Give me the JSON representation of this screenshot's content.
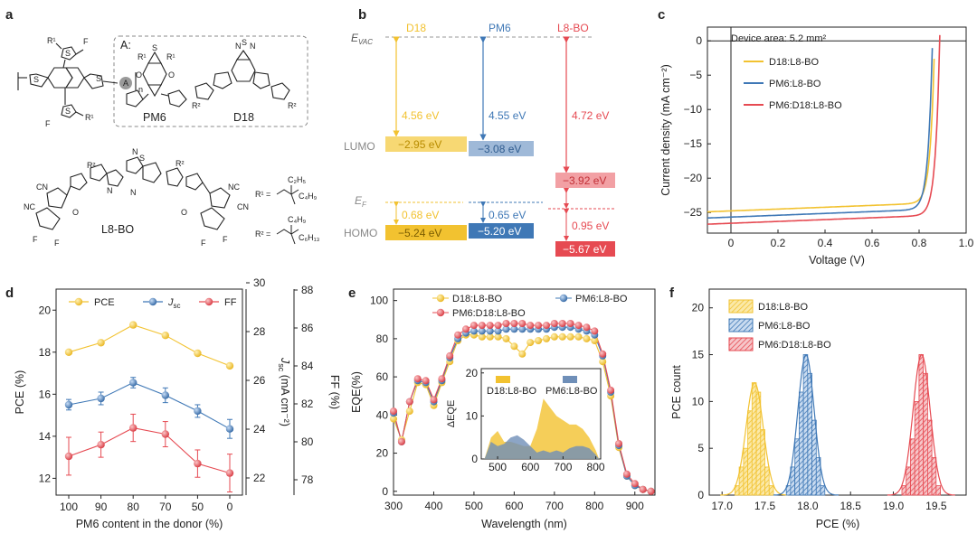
{
  "panels": {
    "a": {
      "label": "a",
      "box_title": "A:",
      "pm6": "PM6",
      "d18": "D18",
      "l8bo": "L8-BO",
      "r1": "R¹ =",
      "r2": "R² =",
      "r1_sub1": "C₂H₅",
      "r1_sub2": "C₄H₉",
      "r2_sub1": "C₄H₉",
      "r2_sub2": "C₆H₁₃",
      "atoms": {
        "S": "S",
        "F": "F",
        "N": "N",
        "O": "O",
        "CN": "CN",
        "NC": "NC",
        "R1": "R¹",
        "R2": "R²",
        "A": "A",
        "n": "n"
      }
    },
    "b": {
      "label": "b",
      "columns": [
        "D18",
        "PM6",
        "L8-BO"
      ],
      "evac": "E",
      "evac_sub": "VAC",
      "ef": "E",
      "ef_sub": "F",
      "lumo": "LUMO",
      "homo": "HOMO",
      "gaps": [
        "4.56 eV",
        "4.55 eV",
        "4.72 eV"
      ],
      "lumo_vals": [
        "−2.95 eV",
        "−3.08 eV",
        "−3.92 eV"
      ],
      "ef_gaps": [
        "0.68 eV",
        "0.65 eV",
        "0.95 eV"
      ],
      "homo_vals": [
        "−5.24 eV",
        "−5.20 eV",
        "−5.67 eV"
      ],
      "colors": [
        "#f2c230",
        "#3f78b6",
        "#e64a52"
      ]
    }
  },
  "chart_data": [
    {
      "panel": "c",
      "type": "line",
      "xlabel": "Voltage (V)",
      "ylabel": "Current density (mA cm⁻²)",
      "annotation": "Device area: 5.2 mm²",
      "xlim": [
        -0.1,
        1.0
      ],
      "ylim": [
        -28,
        2
      ],
      "xticks": [
        "0",
        "0.2",
        "0.4",
        "0.6",
        "0.8",
        "1.0"
      ],
      "yticks": [
        "0",
        "−5",
        "−10",
        "−15",
        "−20",
        "−25"
      ],
      "legend": "inside-left",
      "series": [
        {
          "name": "D18:L8-BO",
          "color": "#f2c230",
          "jsc": -24.9,
          "voc": 0.9,
          "knee": 0.8,
          "slope": 1.5
        },
        {
          "name": "PM6:L8-BO",
          "color": "#3f78b6",
          "jsc": -25.8,
          "voc": 0.895,
          "knee": 0.79,
          "slope": 1.5
        },
        {
          "name": "PM6:D18:L8-BO",
          "color": "#e64a52",
          "jsc": -26.7,
          "voc": 0.91,
          "knee": 0.82,
          "slope": 1.6
        }
      ]
    },
    {
      "panel": "d",
      "type": "line",
      "xlabel": "PM6 content in the donor (%)",
      "ylabel": "PCE (%)",
      "ylabel2": "J",
      "ylabel2_sub": "sc",
      "ylabel2_unit": " (mA cm⁻²)",
      "ylabel3": "FF (%)",
      "categories": [
        "100",
        "90",
        "80",
        "70",
        "50",
        "0"
      ],
      "yticks": [
        "12",
        "14",
        "16",
        "18",
        "20"
      ],
      "yticks2": [
        "22",
        "24",
        "26",
        "28",
        "30"
      ],
      "yticks3": [
        "78",
        "80",
        "82",
        "84",
        "86",
        "88"
      ],
      "legend": "top",
      "series": [
        {
          "name": "PCE",
          "color": "#f2c230",
          "values": [
            18.0,
            18.45,
            19.3,
            18.8,
            17.95,
            17.35
          ]
        },
        {
          "name": "J",
          "name_sub": "sc",
          "color": "#3f78b6",
          "values": [
            15.5,
            15.8,
            16.55,
            15.95,
            15.2,
            14.35
          ],
          "err": [
            0.25,
            0.3,
            0.25,
            0.35,
            0.3,
            0.45
          ]
        },
        {
          "name": "FF",
          "color": "#e64a52",
          "values": [
            13.05,
            13.6,
            14.4,
            14.1,
            12.7,
            12.25
          ],
          "err": [
            0.9,
            0.6,
            0.65,
            0.6,
            0.65,
            0.9
          ]
        }
      ]
    },
    {
      "panel": "e",
      "type": "line",
      "xlabel": "Wavelength (nm)",
      "ylabel": "EQE(%)",
      "xticks": [
        "300",
        "400",
        "500",
        "600",
        "700",
        "800",
        "900"
      ],
      "yticks": [
        "0",
        "20",
        "40",
        "60",
        "80",
        "100"
      ],
      "xlim": [
        300,
        950
      ],
      "ylim": [
        -2,
        106
      ],
      "legend": "top",
      "x": [
        300,
        320,
        340,
        360,
        380,
        400,
        420,
        440,
        460,
        480,
        500,
        520,
        540,
        560,
        580,
        600,
        620,
        640,
        660,
        680,
        700,
        720,
        740,
        760,
        780,
        800,
        820,
        840,
        860,
        880,
        900,
        920,
        940
      ],
      "series": [
        {
          "name": "D18:L8-BO",
          "color": "#f2c230",
          "values": [
            38,
            27,
            42,
            57,
            56,
            45,
            57,
            68,
            79,
            82,
            82,
            81,
            81,
            81,
            80,
            76,
            72,
            78,
            79,
            80,
            81,
            81,
            81,
            81,
            80,
            79,
            68,
            50,
            23,
            8,
            3,
            1,
            0
          ]
        },
        {
          "name": "PM6:L8-BO",
          "color": "#3f78b6",
          "values": [
            41,
            26,
            47,
            58,
            57,
            47,
            58,
            70,
            80,
            83,
            84,
            84,
            84,
            84,
            85,
            85,
            85,
            85,
            85,
            85,
            86,
            86,
            86,
            85,
            84,
            82,
            71,
            52,
            24,
            8,
            3,
            1,
            0
          ]
        },
        {
          "name": "PM6:D18:L8-BO",
          "color": "#e64a52",
          "values": [
            42,
            26,
            47,
            59,
            58,
            48,
            59,
            71,
            82,
            85,
            87,
            87,
            87,
            87,
            88,
            88,
            88,
            87,
            87,
            87,
            88,
            88,
            88,
            87,
            86,
            84,
            72,
            53,
            25,
            9,
            4,
            1,
            0
          ]
        }
      ],
      "inset": {
        "ylabel": "ΔEQE",
        "xticks": [
          "500",
          "600",
          "700",
          "800"
        ],
        "yticks": [
          "0",
          "10",
          "20"
        ],
        "legend": [
          "D18:L8-BO",
          "PM6:L8-BO"
        ],
        "x": [
          460,
          480,
          500,
          520,
          540,
          560,
          580,
          600,
          620,
          640,
          660,
          680,
          700,
          720,
          740,
          760,
          780,
          800,
          810
        ],
        "yellow": [
          0,
          5,
          6.5,
          4,
          4,
          3.5,
          3,
          3,
          7,
          14,
          12,
          10,
          9,
          8,
          8,
          7,
          5,
          2,
          0
        ],
        "blue": [
          0,
          4,
          3,
          3.5,
          5,
          5.5,
          4.5,
          3,
          1.5,
          2,
          1.5,
          2,
          1.5,
          2.5,
          3,
          3,
          2.5,
          1,
          0
        ]
      }
    },
    {
      "panel": "f",
      "type": "bar",
      "xlabel": "PCE (%)",
      "ylabel": "PCE count",
      "xticks": [
        "17.0",
        "17.5",
        "18.0",
        "18.5",
        "19.0",
        "19.5"
      ],
      "yticks": [
        "0",
        "5",
        "10",
        "15",
        "20"
      ],
      "xlim": [
        16.85,
        19.85
      ],
      "ylim": [
        0,
        22
      ],
      "legend": "top-left",
      "binwidth": 0.05,
      "series": [
        {
          "name": "D18:L8-BO",
          "color": "#f2c230",
          "bins": [
            17.175,
            17.225,
            17.275,
            17.325,
            17.375,
            17.425,
            17.475,
            17.525,
            17.575
          ],
          "counts": [
            1,
            3,
            5,
            9,
            12,
            11,
            7,
            3,
            1
          ],
          "mu": 17.38,
          "sigma": 0.1
        },
        {
          "name": "PM6:L8-BO",
          "color": "#3f78b6",
          "bins": [
            17.775,
            17.825,
            17.875,
            17.925,
            17.975,
            18.025,
            18.075,
            18.125,
            18.175
          ],
          "counts": [
            1,
            3,
            6,
            11,
            15,
            13,
            8,
            4,
            1
          ],
          "mu": 17.98,
          "sigma": 0.095
        },
        {
          "name": "PM6:D18:L8-BO",
          "color": "#e64a52",
          "bins": [
            19.125,
            19.175,
            19.225,
            19.275,
            19.325,
            19.375,
            19.425,
            19.475,
            19.525
          ],
          "counts": [
            1,
            3,
            6,
            10,
            15,
            13,
            8,
            4,
            1
          ],
          "mu": 19.33,
          "sigma": 0.1
        }
      ]
    }
  ]
}
